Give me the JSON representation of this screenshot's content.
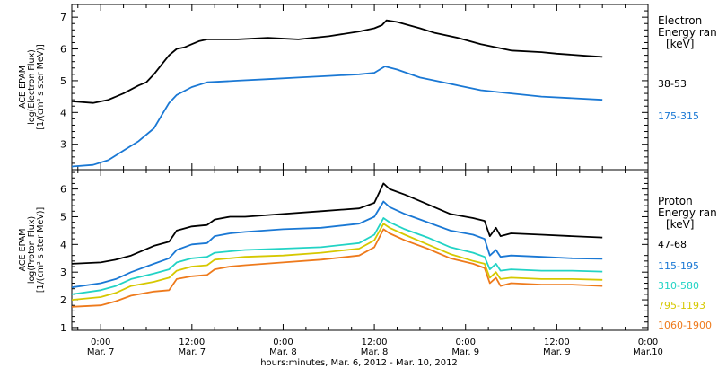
{
  "xaxis": {
    "label": "hours:minutes, Mar.  6, 2012 - Mar. 10, 2012",
    "ticks": [
      {
        "t": 6,
        "time": "0:00",
        "date": "Mar. 7"
      },
      {
        "t": 18,
        "time": "12:00",
        "date": "Mar. 7"
      },
      {
        "t": 30,
        "time": "0:00",
        "date": "Mar. 8"
      },
      {
        "t": 42,
        "time": "12:00",
        "date": "Mar. 8"
      },
      {
        "t": 54,
        "time": "0:00",
        "date": "Mar. 9"
      },
      {
        "t": 66,
        "time": "12:00",
        "date": "Mar. 9"
      },
      {
        "t": 78,
        "time": "0:00",
        "date": "Mar.10"
      }
    ]
  },
  "chart_data": [
    {
      "type": "line",
      "x_unit": "hours since Mar. 6 0:00",
      "xlim": [
        2.2,
        78
      ],
      "ylim": [
        2.2,
        7.4
      ],
      "yticks": [
        3,
        4,
        5,
        6,
        7
      ],
      "ylabel_lines": [
        "ACE EPAM",
        "log(Electron Flux)",
        "[1/(cm² s ster MeV)]"
      ],
      "legend_title_lines": [
        "Electron",
        "Energy ran",
        "[keV]"
      ],
      "series": [
        {
          "name": "38-53",
          "color": "#000000",
          "points": [
            [
              2.2,
              4.35
            ],
            [
              5,
              4.3
            ],
            [
              7,
              4.4
            ],
            [
              9,
              4.6
            ],
            [
              11,
              4.85
            ],
            [
              12,
              4.95
            ],
            [
              13,
              5.2
            ],
            [
              14,
              5.5
            ],
            [
              15,
              5.8
            ],
            [
              16,
              6.0
            ],
            [
              17,
              6.05
            ],
            [
              18,
              6.15
            ],
            [
              19,
              6.25
            ],
            [
              20,
              6.3
            ],
            [
              24,
              6.3
            ],
            [
              28,
              6.35
            ],
            [
              32,
              6.3
            ],
            [
              36,
              6.4
            ],
            [
              40,
              6.55
            ],
            [
              42,
              6.65
            ],
            [
              43,
              6.75
            ],
            [
              43.6,
              6.9
            ],
            [
              45,
              6.85
            ],
            [
              48,
              6.65
            ],
            [
              50,
              6.5
            ],
            [
              53,
              6.35
            ],
            [
              56,
              6.15
            ],
            [
              60,
              5.95
            ],
            [
              64,
              5.9
            ],
            [
              66,
              5.85
            ],
            [
              70,
              5.78
            ],
            [
              72,
              5.75
            ]
          ]
        },
        {
          "name": "175-315",
          "color": "#1a78d4",
          "points": [
            [
              2.2,
              2.3
            ],
            [
              5,
              2.35
            ],
            [
              7,
              2.5
            ],
            [
              9,
              2.8
            ],
            [
              11,
              3.1
            ],
            [
              13,
              3.5
            ],
            [
              14,
              3.9
            ],
            [
              15,
              4.3
            ],
            [
              16,
              4.55
            ],
            [
              18,
              4.8
            ],
            [
              20,
              4.95
            ],
            [
              24,
              5.0
            ],
            [
              28,
              5.05
            ],
            [
              32,
              5.1
            ],
            [
              36,
              5.15
            ],
            [
              40,
              5.2
            ],
            [
              42,
              5.25
            ],
            [
              43.4,
              5.45
            ],
            [
              45,
              5.35
            ],
            [
              48,
              5.1
            ],
            [
              50,
              5.0
            ],
            [
              53,
              4.85
            ],
            [
              56,
              4.7
            ],
            [
              60,
              4.6
            ],
            [
              64,
              4.5
            ],
            [
              68,
              4.45
            ],
            [
              72,
              4.4
            ]
          ]
        }
      ]
    },
    {
      "type": "line",
      "x_unit": "hours since Mar. 6 0:00",
      "xlim": [
        2.2,
        78
      ],
      "ylim": [
        0.9,
        6.7
      ],
      "yticks": [
        1,
        2,
        3,
        4,
        5,
        6
      ],
      "ylabel_lines": [
        "ACE EPAM",
        "log(Proton Flux)",
        "[1/(cm² s ster MeV)]"
      ],
      "legend_title_lines": [
        "Proton",
        "Energy ran",
        "[keV]"
      ],
      "series": [
        {
          "name": "47-68",
          "color": "#000000",
          "points": [
            [
              2.2,
              3.3
            ],
            [
              6,
              3.35
            ],
            [
              8,
              3.45
            ],
            [
              10,
              3.6
            ],
            [
              13,
              3.95
            ],
            [
              15,
              4.1
            ],
            [
              16,
              4.5
            ],
            [
              18,
              4.65
            ],
            [
              20,
              4.7
            ],
            [
              21,
              4.9
            ],
            [
              23,
              5.0
            ],
            [
              25,
              5.0
            ],
            [
              30,
              5.1
            ],
            [
              35,
              5.2
            ],
            [
              40,
              5.3
            ],
            [
              42,
              5.5
            ],
            [
              43.2,
              6.2
            ],
            [
              44,
              6.0
            ],
            [
              46,
              5.8
            ],
            [
              49,
              5.45
            ],
            [
              52,
              5.1
            ],
            [
              55,
              4.95
            ],
            [
              56.5,
              4.85
            ],
            [
              57.2,
              4.3
            ],
            [
              58,
              4.6
            ],
            [
              58.6,
              4.3
            ],
            [
              60,
              4.4
            ],
            [
              64,
              4.35
            ],
            [
              68,
              4.3
            ],
            [
              72,
              4.25
            ]
          ]
        },
        {
          "name": "115-195",
          "color": "#1a78d4",
          "points": [
            [
              2.2,
              2.45
            ],
            [
              6,
              2.6
            ],
            [
              8,
              2.75
            ],
            [
              10,
              3.0
            ],
            [
              13,
              3.3
            ],
            [
              15,
              3.5
            ],
            [
              16,
              3.8
            ],
            [
              18,
              4.0
            ],
            [
              20,
              4.05
            ],
            [
              21,
              4.3
            ],
            [
              23,
              4.4
            ],
            [
              25,
              4.45
            ],
            [
              30,
              4.55
            ],
            [
              35,
              4.6
            ],
            [
              40,
              4.75
            ],
            [
              42,
              5.0
            ],
            [
              43.2,
              5.55
            ],
            [
              44,
              5.35
            ],
            [
              46,
              5.1
            ],
            [
              49,
              4.8
            ],
            [
              52,
              4.5
            ],
            [
              55,
              4.35
            ],
            [
              56.5,
              4.2
            ],
            [
              57.2,
              3.6
            ],
            [
              58,
              3.8
            ],
            [
              58.6,
              3.55
            ],
            [
              60,
              3.6
            ],
            [
              64,
              3.55
            ],
            [
              68,
              3.5
            ],
            [
              72,
              3.48
            ]
          ]
        },
        {
          "name": "310-580",
          "color": "#22d3c5",
          "points": [
            [
              2.2,
              2.2
            ],
            [
              6,
              2.35
            ],
            [
              8,
              2.5
            ],
            [
              10,
              2.75
            ],
            [
              13,
              2.95
            ],
            [
              15,
              3.1
            ],
            [
              16,
              3.35
            ],
            [
              18,
              3.5
            ],
            [
              20,
              3.55
            ],
            [
              21,
              3.7
            ],
            [
              23,
              3.75
            ],
            [
              25,
              3.8
            ],
            [
              30,
              3.85
            ],
            [
              35,
              3.9
            ],
            [
              40,
              4.05
            ],
            [
              42,
              4.35
            ],
            [
              43.2,
              4.95
            ],
            [
              44,
              4.8
            ],
            [
              46,
              4.55
            ],
            [
              49,
              4.25
            ],
            [
              52,
              3.9
            ],
            [
              55,
              3.7
            ],
            [
              56.5,
              3.55
            ],
            [
              57.2,
              3.1
            ],
            [
              58,
              3.3
            ],
            [
              58.6,
              3.05
            ],
            [
              60,
              3.1
            ],
            [
              64,
              3.05
            ],
            [
              68,
              3.05
            ],
            [
              72,
              3.02
            ]
          ]
        },
        {
          "name": "795-1193",
          "color": "#d6c800",
          "points": [
            [
              2.2,
              2.0
            ],
            [
              6,
              2.1
            ],
            [
              8,
              2.25
            ],
            [
              10,
              2.5
            ],
            [
              13,
              2.65
            ],
            [
              15,
              2.8
            ],
            [
              16,
              3.05
            ],
            [
              18,
              3.2
            ],
            [
              20,
              3.25
            ],
            [
              21,
              3.45
            ],
            [
              23,
              3.5
            ],
            [
              25,
              3.55
            ],
            [
              30,
              3.6
            ],
            [
              35,
              3.7
            ],
            [
              40,
              3.85
            ],
            [
              42,
              4.15
            ],
            [
              43.2,
              4.75
            ],
            [
              44,
              4.6
            ],
            [
              46,
              4.35
            ],
            [
              49,
              4.0
            ],
            [
              52,
              3.65
            ],
            [
              55,
              3.4
            ],
            [
              56.5,
              3.3
            ],
            [
              57.2,
              2.8
            ],
            [
              58,
              3.0
            ],
            [
              58.6,
              2.75
            ],
            [
              60,
              2.8
            ],
            [
              64,
              2.75
            ],
            [
              68,
              2.75
            ],
            [
              72,
              2.72
            ]
          ]
        },
        {
          "name": "1060-1900",
          "color": "#ee7a1c",
          "points": [
            [
              2.2,
              1.75
            ],
            [
              6,
              1.8
            ],
            [
              8,
              1.95
            ],
            [
              10,
              2.15
            ],
            [
              13,
              2.3
            ],
            [
              15,
              2.35
            ],
            [
              16,
              2.75
            ],
            [
              18,
              2.85
            ],
            [
              20,
              2.9
            ],
            [
              21,
              3.1
            ],
            [
              23,
              3.2
            ],
            [
              25,
              3.25
            ],
            [
              30,
              3.35
            ],
            [
              35,
              3.45
            ],
            [
              40,
              3.6
            ],
            [
              42,
              3.9
            ],
            [
              43.2,
              4.55
            ],
            [
              44,
              4.4
            ],
            [
              46,
              4.15
            ],
            [
              49,
              3.85
            ],
            [
              52,
              3.5
            ],
            [
              55,
              3.3
            ],
            [
              56.5,
              3.15
            ],
            [
              57.2,
              2.6
            ],
            [
              58,
              2.8
            ],
            [
              58.6,
              2.5
            ],
            [
              60,
              2.6
            ],
            [
              64,
              2.55
            ],
            [
              68,
              2.55
            ],
            [
              72,
              2.5
            ]
          ]
        }
      ]
    }
  ]
}
